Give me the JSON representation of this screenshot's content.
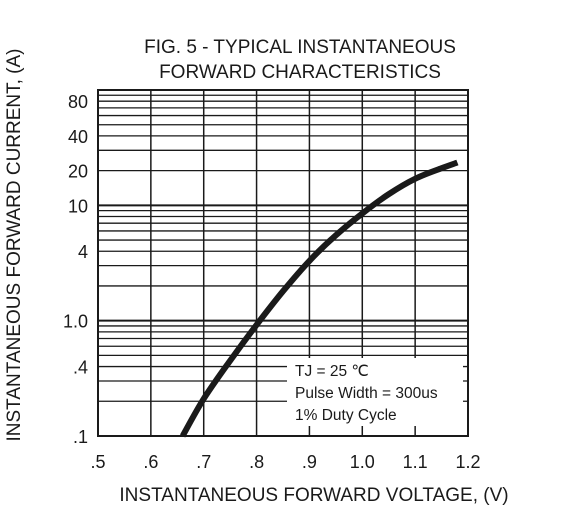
{
  "chart_data": {
    "type": "line",
    "title_lines": [
      "FIG. 5 - TYPICAL INSTANTANEOUS",
      "FORWARD CHARACTERISTICS"
    ],
    "xlabel": "INSTANTANEOUS FORWARD VOLTAGE, (V)",
    "ylabel": "INSTANTANEOUS FORWARD CURRENT, (A)",
    "x_scale": "linear",
    "y_scale": "log",
    "xlim": [
      0.5,
      1.2
    ],
    "ylim": [
      0.1,
      100
    ],
    "x_ticks": [
      {
        "value": 0.5,
        "label": ".5"
      },
      {
        "value": 0.6,
        "label": ".6"
      },
      {
        "value": 0.7,
        "label": ".7"
      },
      {
        "value": 0.8,
        "label": ".8"
      },
      {
        "value": 0.9,
        "label": ".9"
      },
      {
        "value": 1.0,
        "label": "1.0"
      },
      {
        "value": 1.1,
        "label": "1.1"
      },
      {
        "value": 1.2,
        "label": "1.2"
      }
    ],
    "y_ticks": [
      {
        "value": 0.1,
        "label": ".1"
      },
      {
        "value": 0.4,
        "label": ".4"
      },
      {
        "value": 1,
        "label": "1.0"
      },
      {
        "value": 4,
        "label": "4"
      },
      {
        "value": 10,
        "label": "10"
      },
      {
        "value": 20,
        "label": "20"
      },
      {
        "value": 40,
        "label": "40"
      },
      {
        "value": 80,
        "label": "80"
      }
    ],
    "grid": true,
    "series": [
      {
        "color": "#1a1a1a",
        "x": [
          0.66,
          0.7,
          0.75,
          0.8,
          0.85,
          0.9,
          0.95,
          1.0,
          1.05,
          1.1,
          1.15,
          1.18
        ],
        "y": [
          0.1,
          0.21,
          0.45,
          0.92,
          1.8,
          3.3,
          5.5,
          8.5,
          12.5,
          17,
          21,
          23.5
        ]
      }
    ],
    "annotation": {
      "lines": [
        "TJ = 25 ℃",
        "Pulse Width = 300us",
        "1% Duty Cycle"
      ],
      "position": "bottom-right"
    }
  }
}
